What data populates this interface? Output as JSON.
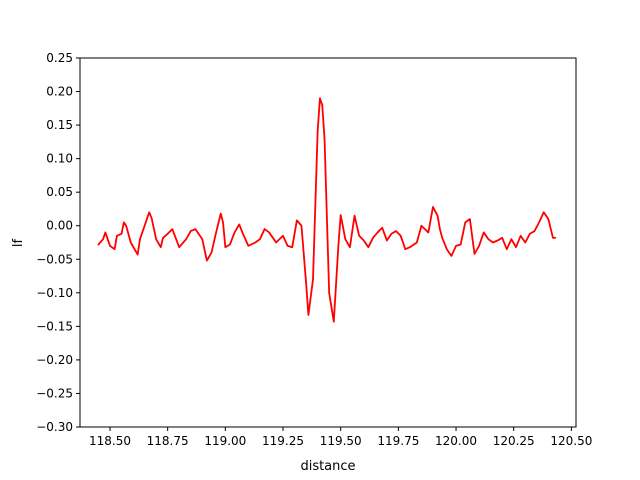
{
  "chart_data": {
    "type": "line",
    "title": "",
    "xlabel": "distance",
    "ylabel": "lf",
    "xlim": [
      118.37,
      120.52
    ],
    "ylim": [
      -0.3,
      0.25
    ],
    "xticks": [
      118.5,
      118.75,
      119.0,
      119.25,
      119.5,
      119.75,
      120.0,
      120.25,
      120.5
    ],
    "xtick_labels": [
      "118.50",
      "118.75",
      "119.00",
      "119.25",
      "119.50",
      "119.75",
      "120.00",
      "120.25",
      "120.50"
    ],
    "yticks": [
      -0.3,
      -0.25,
      -0.2,
      -0.15,
      -0.1,
      -0.05,
      0.0,
      0.05,
      0.1,
      0.15,
      0.2,
      0.25
    ],
    "ytick_labels": [
      "−0.30",
      "−0.25",
      "−0.20",
      "−0.15",
      "−0.10",
      "−0.05",
      "0.00",
      "0.05",
      "0.10",
      "0.15",
      "0.20",
      "0.25"
    ],
    "grid": false,
    "series": [
      {
        "name": "lf",
        "color": "#ff0000",
        "x": [
          118.45,
          118.47,
          118.48,
          118.5,
          118.52,
          118.53,
          118.55,
          118.56,
          118.57,
          118.59,
          118.62,
          118.63,
          118.65,
          118.67,
          118.68,
          118.7,
          118.72,
          118.73,
          118.75,
          118.77,
          118.8,
          118.83,
          118.85,
          118.87,
          118.9,
          118.92,
          118.94,
          118.96,
          118.98,
          118.99,
          119.0,
          119.02,
          119.04,
          119.06,
          119.08,
          119.1,
          119.13,
          119.15,
          119.17,
          119.19,
          119.22,
          119.25,
          119.27,
          119.29,
          119.31,
          119.33,
          119.35,
          119.36,
          119.38,
          119.4,
          119.41,
          119.42,
          119.43,
          119.45,
          119.47,
          119.49,
          119.5,
          119.52,
          119.54,
          119.56,
          119.58,
          119.6,
          119.62,
          119.64,
          119.66,
          119.68,
          119.7,
          119.72,
          119.74,
          119.76,
          119.78,
          119.8,
          119.83,
          119.85,
          119.88,
          119.9,
          119.92,
          119.93,
          119.94,
          119.96,
          119.98,
          120.0,
          120.02,
          120.04,
          120.06,
          120.08,
          120.1,
          120.12,
          120.14,
          120.16,
          120.18,
          120.2,
          120.22,
          120.24,
          120.26,
          120.28,
          120.3,
          120.32,
          120.34,
          120.36,
          120.38,
          120.4,
          120.42,
          120.43
        ],
        "y": [
          -0.028,
          -0.02,
          -0.01,
          -0.03,
          -0.035,
          -0.015,
          -0.012,
          0.005,
          0.0,
          -0.025,
          -0.043,
          -0.02,
          0.0,
          0.02,
          0.012,
          -0.02,
          -0.032,
          -0.018,
          -0.012,
          -0.005,
          -0.032,
          -0.02,
          -0.008,
          -0.005,
          -0.02,
          -0.052,
          -0.04,
          -0.01,
          0.018,
          0.005,
          -0.032,
          -0.028,
          -0.01,
          0.002,
          -0.015,
          -0.03,
          -0.025,
          -0.02,
          -0.005,
          -0.01,
          -0.025,
          -0.015,
          -0.03,
          -0.032,
          0.008,
          0.0,
          -0.085,
          -0.133,
          -0.08,
          0.14,
          0.19,
          0.18,
          0.13,
          -0.1,
          -0.143,
          -0.03,
          0.016,
          -0.02,
          -0.032,
          0.015,
          -0.015,
          -0.022,
          -0.032,
          -0.018,
          -0.01,
          -0.003,
          -0.022,
          -0.012,
          -0.008,
          -0.015,
          -0.035,
          -0.032,
          -0.025,
          0.0,
          -0.01,
          0.028,
          0.015,
          -0.005,
          -0.018,
          -0.035,
          -0.045,
          -0.03,
          -0.028,
          0.005,
          0.01,
          -0.042,
          -0.03,
          -0.01,
          -0.02,
          -0.025,
          -0.022,
          -0.018,
          -0.035,
          -0.02,
          -0.032,
          -0.015,
          -0.025,
          -0.012,
          -0.008,
          0.005,
          0.02,
          0.01,
          -0.018,
          -0.018
        ]
      }
    ]
  }
}
